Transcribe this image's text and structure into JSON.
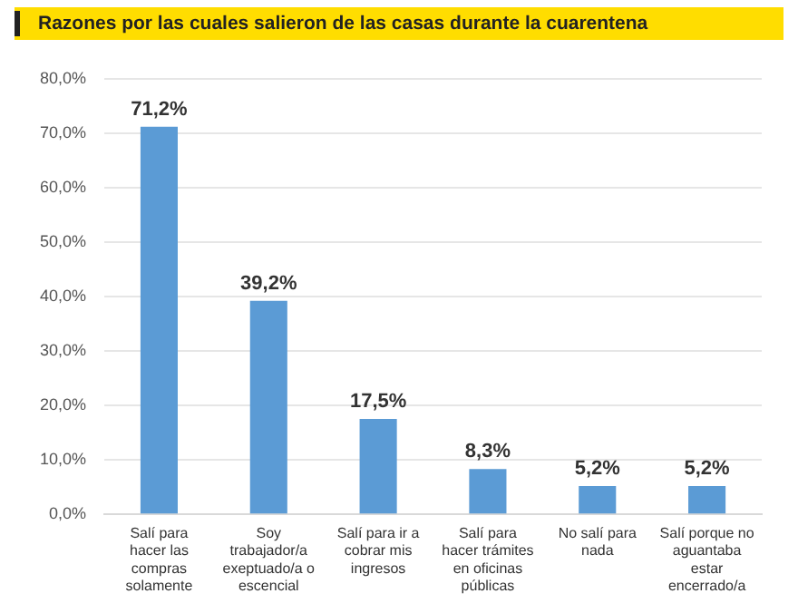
{
  "chart_data": {
    "type": "bar",
    "title": "Razones por las cuales salieron de las casas durante la cuarentena",
    "categories": [
      "Salí para hacer las compras solamente",
      "Soy trabajador/a exeptuado/a o escencial",
      "Salí para ir a cobrar mis ingresos",
      "Salí para hacer trámites en oficinas públicas",
      "No salí para nada",
      "Salí porque no aguantaba estar encerrado/a"
    ],
    "values": [
      71.2,
      39.2,
      17.5,
      8.3,
      5.2,
      5.2
    ],
    "value_labels": [
      "71,2%",
      "39,2%",
      "17,5%",
      "8,3%",
      "5,2%",
      "5,2%"
    ],
    "color": "#5b9bd5",
    "ylim": [
      0,
      80
    ],
    "yticks": [
      {
        "value": 0,
        "label": "0,0%"
      },
      {
        "value": 10,
        "label": "10,0%"
      },
      {
        "value": 20,
        "label": "20,0%"
      },
      {
        "value": 30,
        "label": "30,0%"
      },
      {
        "value": 40,
        "label": "40,0%"
      },
      {
        "value": 50,
        "label": "50,0%"
      },
      {
        "value": 60,
        "label": "60,0%"
      },
      {
        "value": 70,
        "label": "70,0%"
      },
      {
        "value": 80,
        "label": "80,0%"
      }
    ],
    "grid": "y",
    "legend": false
  }
}
